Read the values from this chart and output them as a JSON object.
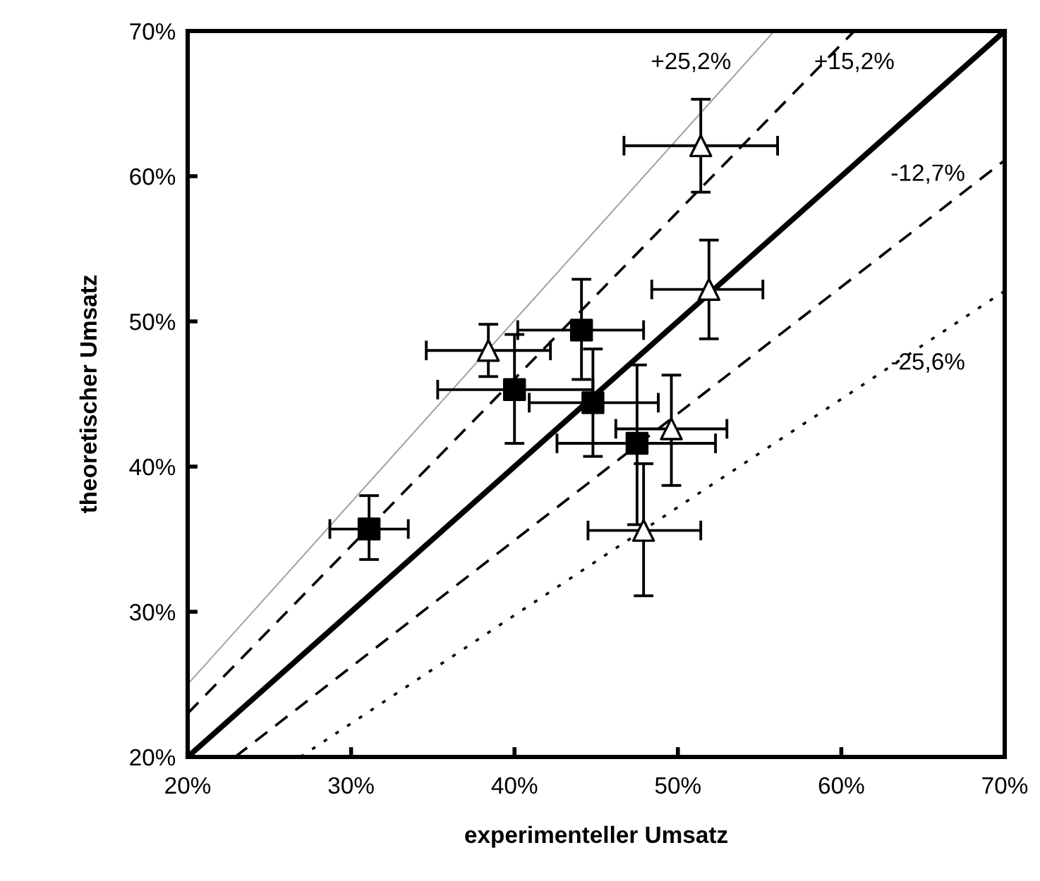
{
  "chart_data": {
    "type": "scatter",
    "xlabel": "experimenteller Umsatz",
    "ylabel": "theoretischer Umsatz",
    "xlim": [
      20,
      70
    ],
    "ylim": [
      20,
      70
    ],
    "xticks": [
      {
        "value": 20,
        "label": "20%"
      },
      {
        "value": 30,
        "label": "30%"
      },
      {
        "value": 40,
        "label": "40%"
      },
      {
        "value": 50,
        "label": "50%"
      },
      {
        "value": 60,
        "label": "60%"
      },
      {
        "value": 70,
        "label": "70%"
      }
    ],
    "yticks": [
      {
        "value": 20,
        "label": "20%"
      },
      {
        "value": 30,
        "label": "30%"
      },
      {
        "value": 40,
        "label": "40%"
      },
      {
        "value": 50,
        "label": "50%"
      },
      {
        "value": 60,
        "label": "60%"
      },
      {
        "value": 70,
        "label": "70%"
      }
    ],
    "grid": false,
    "legend": false,
    "series": [
      {
        "type": "line",
        "color": "#a0a0a0",
        "line_style": "solid",
        "x": [
          20,
          55.9
        ],
        "values": [
          25.0,
          70.0
        ]
      },
      {
        "type": "line",
        "color": "#000000",
        "line_style": "dashed",
        "x": [
          20,
          60.8
        ],
        "values": [
          23.0,
          70.0
        ]
      },
      {
        "type": "line",
        "color": "#000000",
        "line_style": "solid",
        "x": [
          20,
          70
        ],
        "values": [
          20,
          70
        ]
      },
      {
        "type": "line",
        "color": "#000000",
        "line_style": "dashed",
        "x": [
          22.9,
          70
        ],
        "values": [
          20,
          61.1
        ]
      },
      {
        "type": "line",
        "color": "#000000",
        "line_style": "dotted",
        "x": [
          26.9,
          70
        ],
        "values": [
          20,
          52.1
        ]
      },
      {
        "marker": "square",
        "color": "#000000",
        "x": [
          31.1,
          44.1,
          40.0,
          44.8,
          47.5
        ],
        "values": [
          35.7,
          49.4,
          45.3,
          44.4,
          41.6
        ],
        "errors": [
          [
            33.6,
            38.0
          ],
          [
            46.0,
            52.9
          ],
          [
            41.6,
            49.1
          ],
          [
            40.7,
            48.1
          ],
          [
            36.0,
            47.0
          ]
        ],
        "xerrors": [
          [
            28.7,
            33.5
          ],
          [
            40.2,
            47.9
          ],
          [
            35.3,
            44.8
          ],
          [
            40.9,
            48.8
          ],
          [
            42.6,
            52.3
          ]
        ]
      },
      {
        "marker": "triangle",
        "color": "#ffffff",
        "x": [
          51.4,
          51.9,
          38.4,
          49.6,
          47.9
        ],
        "values": [
          62.1,
          52.2,
          48.0,
          42.6,
          35.6
        ],
        "errors": [
          [
            58.9,
            65.3
          ],
          [
            48.8,
            55.6
          ],
          [
            46.2,
            49.8
          ],
          [
            38.7,
            46.3
          ],
          [
            31.1,
            40.2
          ]
        ],
        "xerrors": [
          [
            46.7,
            56.1
          ],
          [
            48.4,
            55.2
          ],
          [
            34.6,
            42.2
          ],
          [
            46.2,
            53.0
          ],
          [
            44.5,
            51.4
          ]
        ]
      }
    ],
    "annotations": [
      "+25,2%",
      "+15,2%",
      "-12,7%",
      "-25,6%"
    ]
  }
}
